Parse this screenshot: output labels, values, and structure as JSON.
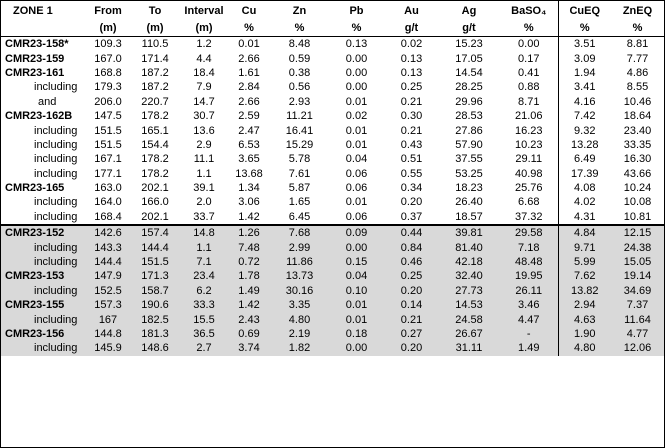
{
  "header": {
    "zone": "ZONE 1",
    "columns": [
      {
        "label": "From",
        "unit": "(m)"
      },
      {
        "label": "To",
        "unit": "(m)"
      },
      {
        "label": "Interval",
        "unit": "(m)"
      },
      {
        "label": "Cu",
        "unit": "%"
      },
      {
        "label": "Zn",
        "unit": "%"
      },
      {
        "label": "Pb",
        "unit": "%"
      },
      {
        "label": "Au",
        "unit": "g/t"
      },
      {
        "label": "Ag",
        "unit": "g/t"
      },
      {
        "label": "BaSO₄",
        "unit": "%"
      },
      {
        "label": "CuEQ",
        "unit": "%"
      },
      {
        "label": "ZnEQ",
        "unit": "%"
      }
    ]
  },
  "rows": [
    {
      "hole": "CMR23-158*",
      "values": [
        "109.3",
        "110.5",
        "1.2",
        "0.01",
        "8.48",
        "0.13",
        "0.02",
        "15.23",
        "0.00",
        "3.51",
        "8.81"
      ]
    },
    {
      "hole": "CMR23-159",
      "values": [
        "167.0",
        "171.4",
        "4.4",
        "2.66",
        "0.59",
        "0.00",
        "0.13",
        "17.05",
        "0.17",
        "3.09",
        "7.77"
      ]
    },
    {
      "hole": "CMR23-161",
      "values": [
        "168.8",
        "187.2",
        "18.4",
        "1.61",
        "0.38",
        "0.00",
        "0.13",
        "14.54",
        "0.41",
        "1.94",
        "4.86"
      ]
    },
    {
      "hole": "including",
      "values": [
        "179.3",
        "187.2",
        "7.9",
        "2.84",
        "0.56",
        "0.00",
        "0.25",
        "28.25",
        "0.88",
        "3.41",
        "8.55"
      ]
    },
    {
      "hole": "and",
      "values": [
        "206.0",
        "220.7",
        "14.7",
        "2.66",
        "2.93",
        "0.01",
        "0.21",
        "29.96",
        "8.71",
        "4.16",
        "10.46"
      ]
    },
    {
      "hole": "CMR23-162B",
      "values": [
        "147.5",
        "178.2",
        "30.7",
        "2.59",
        "11.21",
        "0.02",
        "0.30",
        "28.53",
        "21.06",
        "7.42",
        "18.64"
      ]
    },
    {
      "hole": "including",
      "values": [
        "151.5",
        "165.1",
        "13.6",
        "2.47",
        "16.41",
        "0.01",
        "0.21",
        "27.86",
        "16.23",
        "9.32",
        "23.40"
      ]
    },
    {
      "hole": "including",
      "values": [
        "151.5",
        "154.4",
        "2.9",
        "6.53",
        "15.29",
        "0.01",
        "0.43",
        "57.90",
        "10.23",
        "13.28",
        "33.35"
      ]
    },
    {
      "hole": "including",
      "values": [
        "167.1",
        "178.2",
        "11.1",
        "3.65",
        "5.78",
        "0.04",
        "0.51",
        "37.55",
        "29.11",
        "6.49",
        "16.30"
      ]
    },
    {
      "hole": "including",
      "values": [
        "177.1",
        "178.2",
        "1.1",
        "13.68",
        "7.61",
        "0.06",
        "0.55",
        "53.25",
        "40.98",
        "17.39",
        "43.66"
      ]
    },
    {
      "hole": "CMR23-165",
      "values": [
        "163.0",
        "202.1",
        "39.1",
        "1.34",
        "5.87",
        "0.06",
        "0.34",
        "18.23",
        "25.76",
        "4.08",
        "10.24"
      ]
    },
    {
      "hole": "including",
      "values": [
        "164.0",
        "166.0",
        "2.0",
        "3.06",
        "1.65",
        "0.01",
        "0.20",
        "26.40",
        "6.68",
        "4.02",
        "10.08"
      ]
    },
    {
      "hole": "including",
      "values": [
        "168.4",
        "202.1",
        "33.7",
        "1.42",
        "6.45",
        "0.06",
        "0.37",
        "18.57",
        "37.32",
        "4.31",
        "10.81"
      ]
    },
    {
      "hole": "CMR23-152",
      "values": [
        "142.6",
        "157.4",
        "14.8",
        "1.26",
        "7.68",
        "0.09",
        "0.44",
        "39.81",
        "29.58",
        "4.84",
        "12.15"
      ]
    },
    {
      "hole": "including",
      "values": [
        "143.3",
        "144.4",
        "1.1",
        "7.48",
        "2.99",
        "0.00",
        "0.84",
        "81.40",
        "7.18",
        "9.71",
        "24.38"
      ]
    },
    {
      "hole": "including",
      "values": [
        "144.4",
        "151.5",
        "7.1",
        "0.72",
        "11.86",
        "0.15",
        "0.46",
        "42.18",
        "48.48",
        "5.99",
        "15.05"
      ]
    },
    {
      "hole": "CMR23-153",
      "values": [
        "147.9",
        "171.3",
        "23.4",
        "1.78",
        "13.73",
        "0.04",
        "0.25",
        "32.40",
        "19.95",
        "7.62",
        "19.14"
      ]
    },
    {
      "hole": "including",
      "values": [
        "152.5",
        "158.7",
        "6.2",
        "1.49",
        "30.16",
        "0.10",
        "0.20",
        "27.73",
        "26.11",
        "13.82",
        "34.69"
      ]
    },
    {
      "hole": "CMR23-155",
      "values": [
        "157.3",
        "190.6",
        "33.3",
        "1.42",
        "3.35",
        "0.01",
        "0.14",
        "14.53",
        "3.46",
        "2.94",
        "7.37"
      ]
    },
    {
      "hole": "including",
      "values": [
        "167",
        "182.5",
        "15.5",
        "2.43",
        "4.80",
        "0.01",
        "0.21",
        "24.58",
        "4.47",
        "4.63",
        "11.64"
      ]
    },
    {
      "hole": "CMR23-156",
      "values": [
        "144.8",
        "181.3",
        "36.5",
        "0.69",
        "2.19",
        "0.18",
        "0.27",
        "26.67",
        "-",
        "1.90",
        "4.77"
      ]
    },
    {
      "hole": "including",
      "values": [
        "145.9",
        "148.6",
        "2.7",
        "3.74",
        "1.82",
        "0.00",
        "0.20",
        "31.11",
        "1.49",
        "4.80",
        "12.06"
      ]
    }
  ]
}
